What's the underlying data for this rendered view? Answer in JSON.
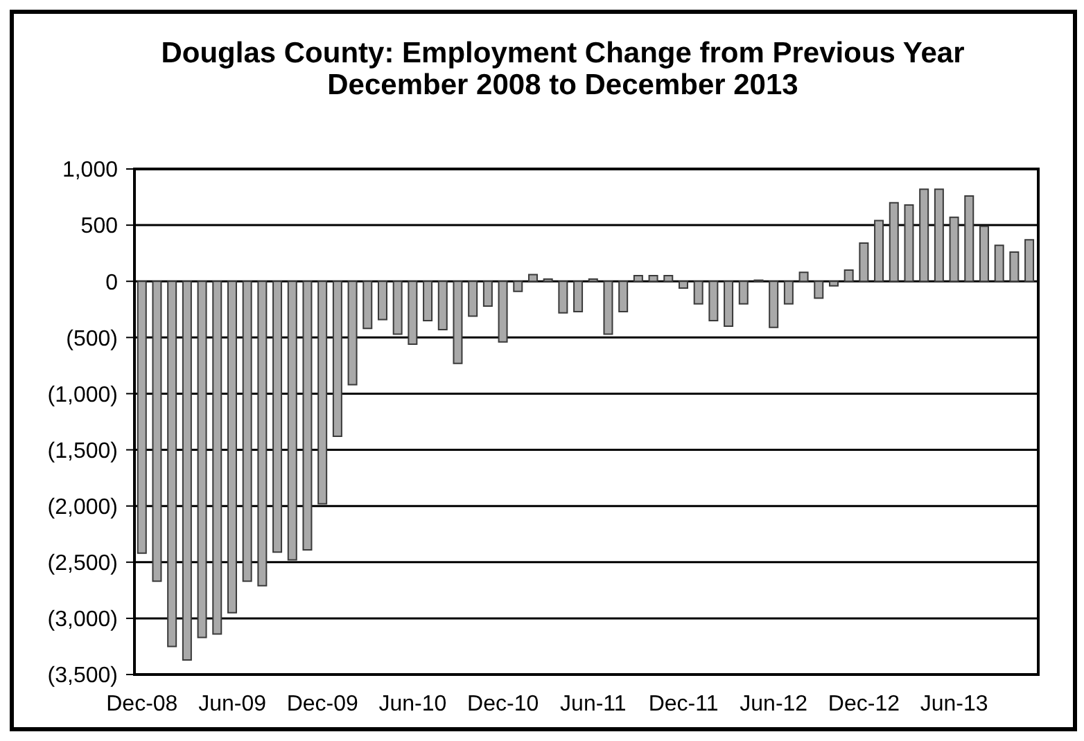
{
  "chart_data": {
    "type": "bar",
    "title": "Douglas County: Employment Change from Previous Year",
    "subtitle": "December 2008 to December 2013",
    "categories": [
      "Dec-08",
      null,
      null,
      null,
      null,
      null,
      "Jun-09",
      null,
      null,
      null,
      null,
      null,
      "Dec-09",
      null,
      null,
      null,
      null,
      null,
      "Jun-10",
      null,
      null,
      null,
      null,
      null,
      "Dec-10",
      null,
      null,
      null,
      null,
      null,
      "Jun-11",
      null,
      null,
      null,
      null,
      null,
      "Dec-11",
      null,
      null,
      null,
      null,
      null,
      "Jun-12",
      null,
      null,
      null,
      null,
      null,
      "Dec-12",
      null,
      null,
      null,
      null,
      null,
      "Jun-13",
      null,
      null,
      null,
      null,
      null
    ],
    "values": [
      -2420,
      -2670,
      -3250,
      -3370,
      -3170,
      -3140,
      -2950,
      -2670,
      -2710,
      -2410,
      -2480,
      -2390,
      -1980,
      -1380,
      -920,
      -420,
      -340,
      -470,
      -560,
      -350,
      -430,
      -730,
      -310,
      -220,
      -540,
      -90,
      60,
      20,
      -280,
      -270,
      20,
      -470,
      -270,
      50,
      50,
      50,
      -60,
      -200,
      -350,
      -400,
      -200,
      10,
      -410,
      -200,
      80,
      -150,
      -40,
      100,
      340,
      540,
      700,
      680,
      820,
      820,
      570,
      760,
      490,
      320,
      260,
      370
    ],
    "color": "#a9a9a9",
    "ylim": [
      -3500,
      1000
    ],
    "yticks": [
      {
        "value": 1000,
        "label": "1,000"
      },
      500,
      0,
      {
        "value": -500,
        "label": "(500)"
      },
      {
        "value": -1000,
        "label": "(1,000)"
      },
      {
        "value": -1500,
        "label": "(1,500)"
      },
      {
        "value": -2000,
        "label": "(2,000)"
      },
      {
        "value": -2500,
        "label": "(2,500)"
      },
      {
        "value": -3000,
        "label": "(3,000)"
      },
      {
        "value": -3500,
        "label": "(3,500)"
      }
    ],
    "grid": "y"
  }
}
